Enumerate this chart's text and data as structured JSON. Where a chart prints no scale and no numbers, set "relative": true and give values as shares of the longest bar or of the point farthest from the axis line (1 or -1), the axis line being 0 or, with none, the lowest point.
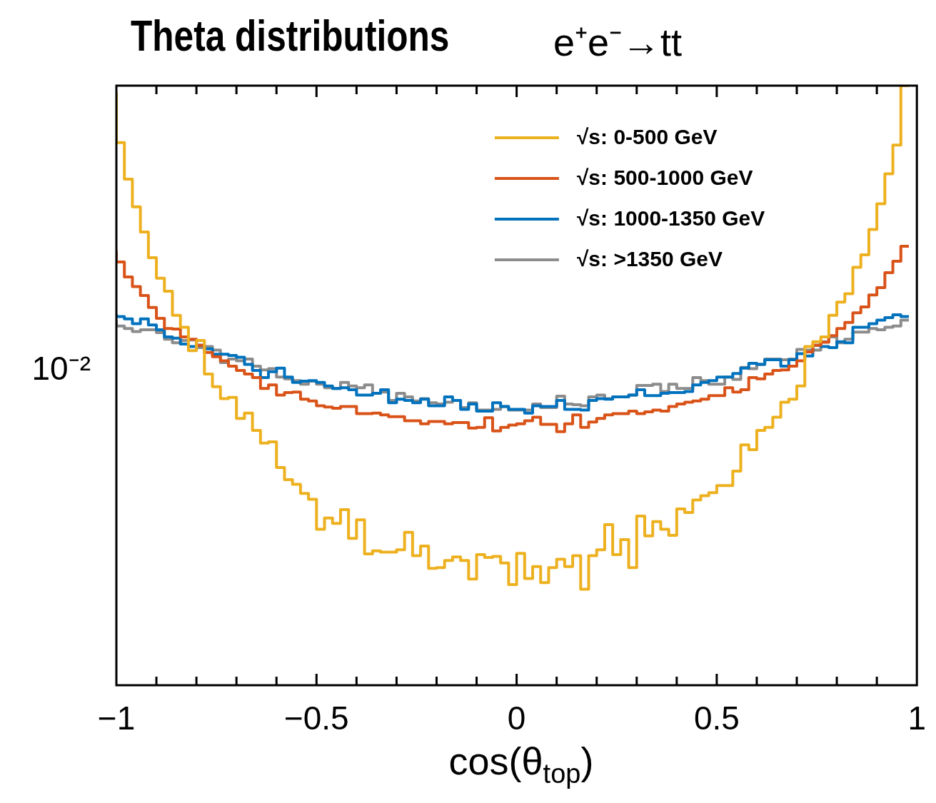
{
  "chart_data": {
    "type": "step",
    "title": "Theta distributions",
    "subtitle": "e⁺e⁻→tt",
    "xlabel": "cos(θ$_{top}$)",
    "relative": true,
    "annotations": [
      "10⁻²"
    ],
    "x": [
      -1,
      -0.98,
      -0.96,
      -0.94,
      -0.92,
      -0.9,
      -0.88,
      -0.86,
      -0.84,
      -0.82,
      -0.8,
      -0.78,
      -0.76,
      -0.74,
      -0.72,
      -0.7,
      -0.68,
      -0.66,
      -0.64,
      -0.62,
      -0.6,
      -0.58,
      -0.56,
      -0.54,
      -0.52,
      -0.5,
      -0.48,
      -0.46,
      -0.44,
      -0.42,
      -0.4,
      -0.38,
      -0.36,
      -0.34,
      -0.32,
      -0.3,
      -0.28,
      -0.26,
      -0.24,
      -0.22,
      -0.2,
      -0.18,
      -0.16,
      -0.14,
      -0.12,
      -0.1,
      -0.08,
      -0.06,
      -0.04,
      -0.02,
      0,
      0.02,
      0.04,
      0.06,
      0.08,
      0.1,
      0.12,
      0.14,
      0.16,
      0.18,
      0.2,
      0.22,
      0.24,
      0.26,
      0.28,
      0.3,
      0.32,
      0.34,
      0.36,
      0.38,
      0.4,
      0.42,
      0.44,
      0.46,
      0.48,
      0.5,
      0.52,
      0.54,
      0.56,
      0.58,
      0.6,
      0.62,
      0.64,
      0.66,
      0.68,
      0.7,
      0.72,
      0.74,
      0.76,
      0.78,
      0.8,
      0.82,
      0.84,
      0.86,
      0.88,
      0.9,
      0.92,
      0.94,
      0.96,
      0.98
    ],
    "series": [
      {
        "name": "√s: 0-500 GeV",
        "color": "#edb120",
        "values": [
          0.99,
          0.905,
          0.844,
          0.798,
          0.756,
          0.713,
          0.679,
          0.657,
          0.617,
          0.597,
          0.558,
          0.575,
          0.519,
          0.498,
          0.478,
          0.48,
          0.445,
          0.454,
          0.425,
          0.404,
          0.406,
          0.363,
          0.343,
          0.335,
          0.32,
          0.31,
          0.26,
          0.279,
          0.27,
          0.293,
          0.245,
          0.276,
          0.219,
          0.224,
          0.222,
          0.222,
          0.226,
          0.255,
          0.216,
          0.232,
          0.195,
          0.196,
          0.208,
          0.214,
          0.208,
          0.177,
          0.218,
          0.213,
          0.215,
          0.204,
          0.168,
          0.22,
          0.178,
          0.198,
          0.171,
          0.196,
          0.21,
          0.198,
          0.216,
          0.16,
          0.216,
          0.226,
          0.268,
          0.218,
          0.243,
          0.196,
          0.282,
          0.249,
          0.273,
          0.26,
          0.25,
          0.294,
          0.288,
          0.309,
          0.316,
          0.321,
          0.333,
          0.333,
          0.357,
          0.401,
          0.393,
          0.425,
          0.43,
          0.447,
          0.472,
          0.477,
          0.499,
          0.565,
          0.573,
          0.581,
          0.617,
          0.639,
          0.653,
          0.697,
          0.718,
          0.76,
          0.803,
          0.853,
          0.901,
          1
        ]
      },
      {
        "name": "√s: 500-1000 GeV",
        "color": "#d95319",
        "values": [
          0.725,
          0.706,
          0.681,
          0.665,
          0.65,
          0.63,
          0.612,
          0.595,
          0.594,
          0.581,
          0.577,
          0.567,
          0.555,
          0.548,
          0.541,
          0.532,
          0.525,
          0.519,
          0.513,
          0.495,
          0.501,
          0.484,
          0.488,
          0.489,
          0.477,
          0.474,
          0.466,
          0.464,
          0.462,
          0.465,
          0.465,
          0.453,
          0.453,
          0.454,
          0.451,
          0.448,
          0.448,
          0.441,
          0.441,
          0.436,
          0.44,
          0.44,
          0.436,
          0.438,
          0.438,
          0.429,
          0.43,
          0.446,
          0.424,
          0.43,
          0.434,
          0.436,
          0.441,
          0.447,
          0.435,
          0.435,
          0.423,
          0.436,
          0.451,
          0.43,
          0.439,
          0.445,
          0.451,
          0.453,
          0.453,
          0.457,
          0.453,
          0.456,
          0.459,
          0.457,
          0.465,
          0.469,
          0.472,
          0.474,
          0.477,
          0.483,
          0.483,
          0.496,
          0.489,
          0.493,
          0.513,
          0.511,
          0.519,
          0.525,
          0.526,
          0.532,
          0.541,
          0.556,
          0.567,
          0.572,
          0.583,
          0.595,
          0.605,
          0.621,
          0.631,
          0.651,
          0.663,
          0.688,
          0.707,
          0.732
        ]
      },
      {
        "name": "√s: 1000-1350 GeV",
        "color": "#0072bd",
        "values": [
          0.619,
          0.615,
          0.611,
          0.603,
          0.611,
          0.601,
          0.593,
          0.581,
          0.579,
          0.569,
          0.565,
          0.567,
          0.561,
          0.552,
          0.552,
          0.55,
          0.547,
          0.535,
          0.525,
          0.513,
          0.523,
          0.529,
          0.514,
          0.505,
          0.507,
          0.508,
          0.505,
          0.499,
          0.495,
          0.496,
          0.493,
          0.484,
          0.484,
          0.487,
          0.493,
          0.471,
          0.477,
          0.475,
          0.471,
          0.477,
          0.466,
          0.466,
          0.481,
          0.475,
          0.46,
          0.469,
          0.457,
          0.457,
          0.471,
          0.465,
          0.46,
          0.46,
          0.454,
          0.466,
          0.465,
          0.465,
          0.475,
          0.46,
          0.46,
          0.459,
          0.475,
          0.478,
          0.477,
          0.481,
          0.481,
          0.484,
          0.493,
          0.483,
          0.483,
          0.487,
          0.488,
          0.488,
          0.49,
          0.501,
          0.505,
          0.508,
          0.514,
          0.514,
          0.52,
          0.529,
          0.537,
          0.535,
          0.543,
          0.543,
          0.532,
          0.543,
          0.553,
          0.549,
          0.567,
          0.565,
          0.563,
          0.573,
          0.571,
          0.597,
          0.597,
          0.603,
          0.609,
          0.613,
          0.618,
          0.615
        ]
      },
      {
        "name": "√s: >1350 GeV",
        "color": "#8c8c8c",
        "values": [
          0.609,
          0.599,
          0.595,
          0.59,
          0.593,
          0.593,
          0.588,
          0.577,
          0.571,
          0.575,
          0.576,
          0.563,
          0.565,
          0.559,
          0.538,
          0.544,
          0.541,
          0.544,
          0.532,
          0.526,
          0.528,
          0.514,
          0.511,
          0.508,
          0.502,
          0.507,
          0.502,
          0.496,
          0.495,
          0.505,
          0.499,
          0.496,
          0.501,
          0.487,
          0.489,
          0.475,
          0.487,
          0.481,
          0.474,
          0.478,
          0.471,
          0.469,
          0.472,
          0.475,
          0.463,
          0.471,
          0.459,
          0.459,
          0.46,
          0.465,
          0.459,
          0.459,
          0.459,
          0.469,
          0.463,
          0.463,
          0.482,
          0.469,
          0.468,
          0.466,
          0.481,
          0.484,
          0.478,
          0.481,
          0.481,
          0.484,
          0.5,
          0.5,
          0.502,
          0.49,
          0.502,
          0.495,
          0.495,
          0.513,
          0.508,
          0.502,
          0.502,
          0.514,
          0.51,
          0.53,
          0.528,
          0.535,
          0.544,
          0.544,
          0.543,
          0.544,
          0.56,
          0.559,
          0.559,
          0.573,
          0.581,
          0.571,
          0.577,
          0.589,
          0.589,
          0.595,
          0.593,
          0.597,
          0.599,
          0.609
        ]
      }
    ],
    "xlim": [
      -1,
      1
    ],
    "xticks": [
      {
        "value": -1,
        "label": "−1"
      },
      {
        "value": -0.9,
        "label": null
      },
      {
        "value": -0.8,
        "label": null
      },
      {
        "value": -0.7,
        "label": null
      },
      {
        "value": -0.6,
        "label": null
      },
      {
        "value": -0.5,
        "label": "−0.5"
      },
      {
        "value": -0.4,
        "label": null
      },
      {
        "value": -0.3,
        "label": null
      },
      {
        "value": -0.2,
        "label": null
      },
      {
        "value": -0.1,
        "label": null
      },
      {
        "value": 0,
        "label": "0"
      },
      {
        "value": 0.1,
        "label": null
      },
      {
        "value": 0.2,
        "label": null
      },
      {
        "value": 0.3,
        "label": null
      },
      {
        "value": 0.4,
        "label": null
      },
      {
        "value": 0.5,
        "label": "0.5"
      },
      {
        "value": 0.6,
        "label": null
      },
      {
        "value": 0.7,
        "label": null
      },
      {
        "value": 0.8,
        "label": null
      },
      {
        "value": 0.9,
        "label": null
      },
      {
        "value": 1,
        "label": "1"
      }
    ],
    "grid": false,
    "legend": "top right",
    "marker": "none",
    "line_style": "solid"
  }
}
